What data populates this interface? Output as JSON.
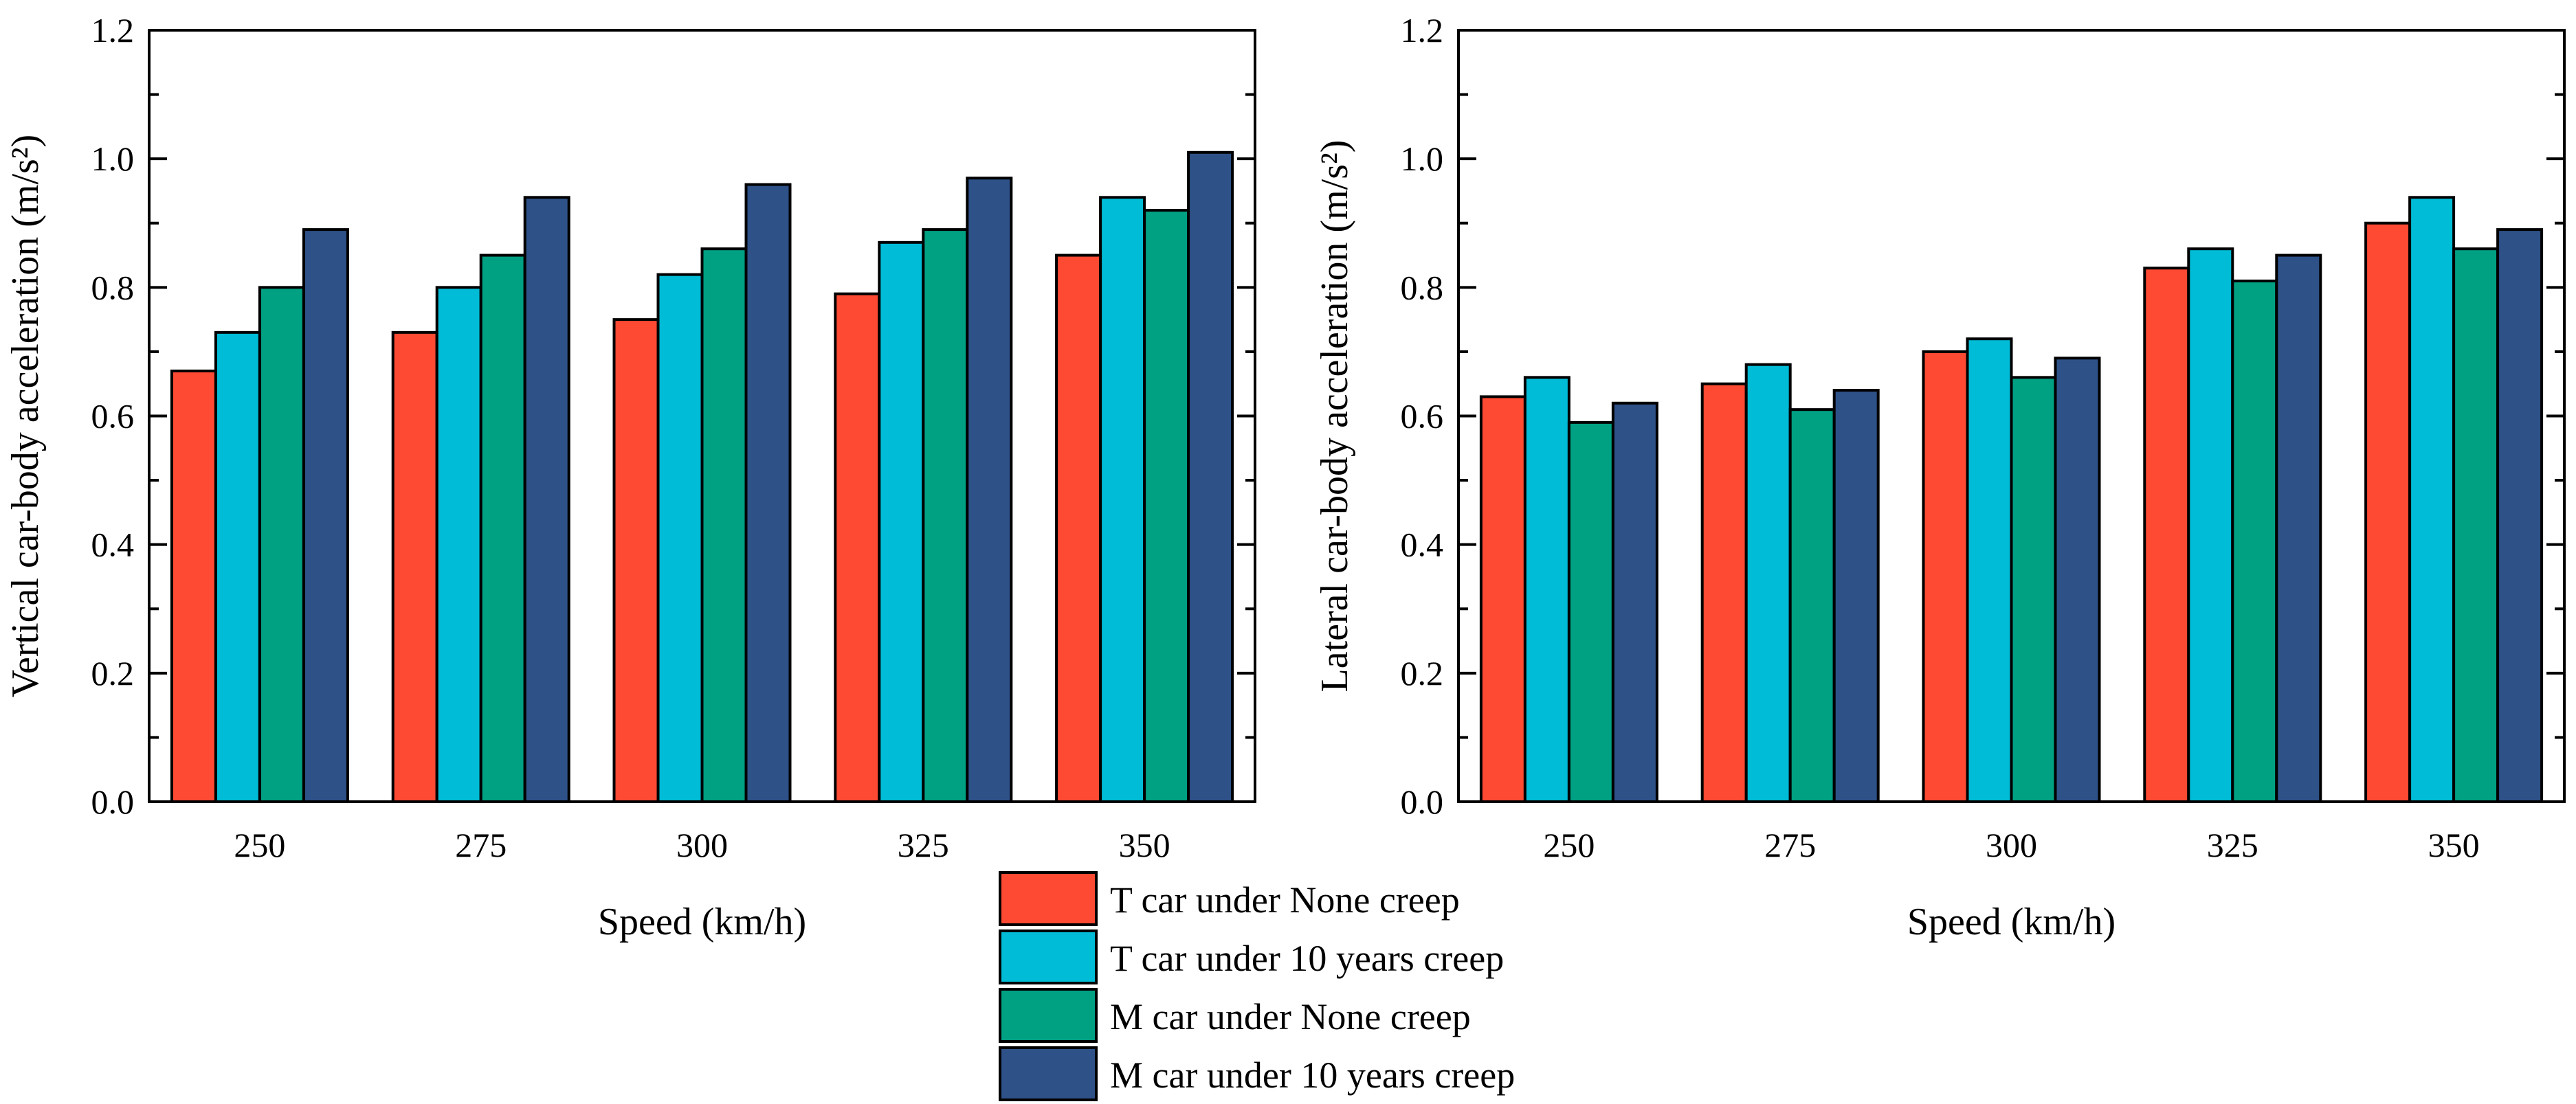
{
  "chart_data": [
    {
      "type": "bar",
      "xlabel": "Speed (km/h)",
      "ylabel": "Vertical car-body acceleration (m/s²)",
      "ylim": [
        0,
        1.2
      ],
      "yticks": [
        "0.0",
        "0.2",
        "0.4",
        "0.6",
        "0.8",
        "1.0",
        "1.2"
      ],
      "grid": false,
      "categories": [
        "250",
        "275",
        "300",
        "325",
        "350"
      ],
      "series": [
        {
          "name": "T car under None creep",
          "values": [
            0.67,
            0.73,
            0.75,
            0.79,
            0.85
          ]
        },
        {
          "name": "T car under 10 years creep",
          "values": [
            0.73,
            0.8,
            0.82,
            0.87,
            0.94
          ]
        },
        {
          "name": "M car under None creep",
          "values": [
            0.8,
            0.85,
            0.86,
            0.89,
            0.92
          ]
        },
        {
          "name": "M car under 10 years creep",
          "values": [
            0.89,
            0.94,
            0.96,
            0.97,
            1.01
          ]
        }
      ]
    },
    {
      "type": "bar",
      "xlabel": "Speed (km/h)",
      "ylabel": "Lateral car-body acceleration (m/s²)",
      "ylim": [
        0,
        1.2
      ],
      "yticks": [
        "0.0",
        "0.2",
        "0.4",
        "0.6",
        "0.8",
        "1.0",
        "1.2"
      ],
      "grid": false,
      "categories": [
        "250",
        "275",
        "300",
        "325",
        "350"
      ],
      "series": [
        {
          "name": "T car under None creep",
          "values": [
            0.63,
            0.65,
            0.7,
            0.83,
            0.9
          ]
        },
        {
          "name": "T car under 10 years creep",
          "values": [
            0.66,
            0.68,
            0.72,
            0.86,
            0.94
          ]
        },
        {
          "name": "M car under None creep",
          "values": [
            0.59,
            0.61,
            0.66,
            0.81,
            0.86
          ]
        },
        {
          "name": "M car under 10 years creep",
          "values": [
            0.62,
            0.64,
            0.69,
            0.85,
            0.89
          ]
        }
      ]
    }
  ],
  "legend": {
    "position": "bottom-center",
    "items": [
      {
        "label": "T car under None creep",
        "color": "#ff4a33"
      },
      {
        "label": "T car under 10 years creep",
        "color": "#00bcd6"
      },
      {
        "label": "M car under None creep",
        "color": "#00a083"
      },
      {
        "label": "M car under 10 years creep",
        "color": "#2e5188"
      }
    ]
  }
}
